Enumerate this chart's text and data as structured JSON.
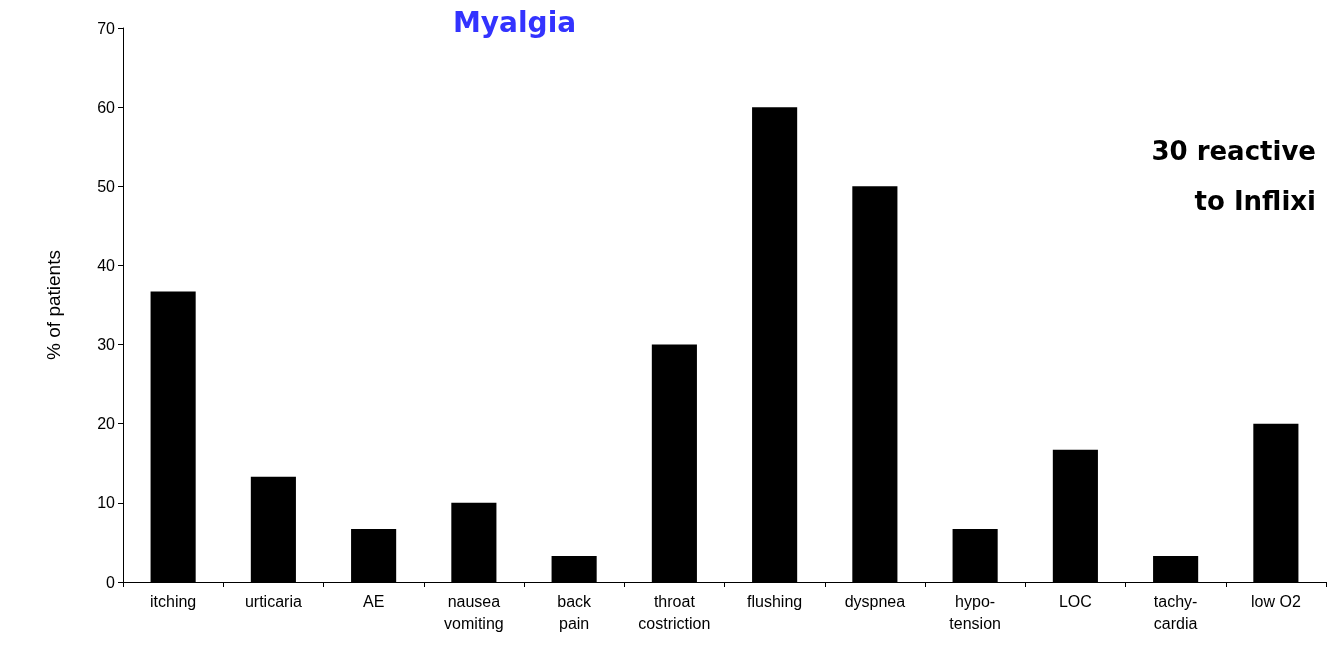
{
  "chart_data": {
    "type": "bar",
    "ylabel": "% of patients",
    "categories": [
      "itching",
      "urticaria",
      "AE",
      "nausea\nvomiting",
      "back\npain",
      "throat\ncostriction",
      "flushing",
      "dyspnea",
      "hypo-\ntension",
      "LOC",
      "tachy-\ncardia",
      "low O2"
    ],
    "values": [
      36.7,
      13.3,
      6.7,
      10,
      3.3,
      30,
      60,
      50,
      6.7,
      16.7,
      3.3,
      20
    ],
    "color": "#000000",
    "ylim": [
      0,
      70
    ],
    "yticks": [
      0,
      10,
      20,
      30,
      40,
      50,
      60,
      70
    ],
    "grid": false,
    "annotations": [
      "Myalgia",
      "30 reactive\nto Inflixi"
    ]
  }
}
